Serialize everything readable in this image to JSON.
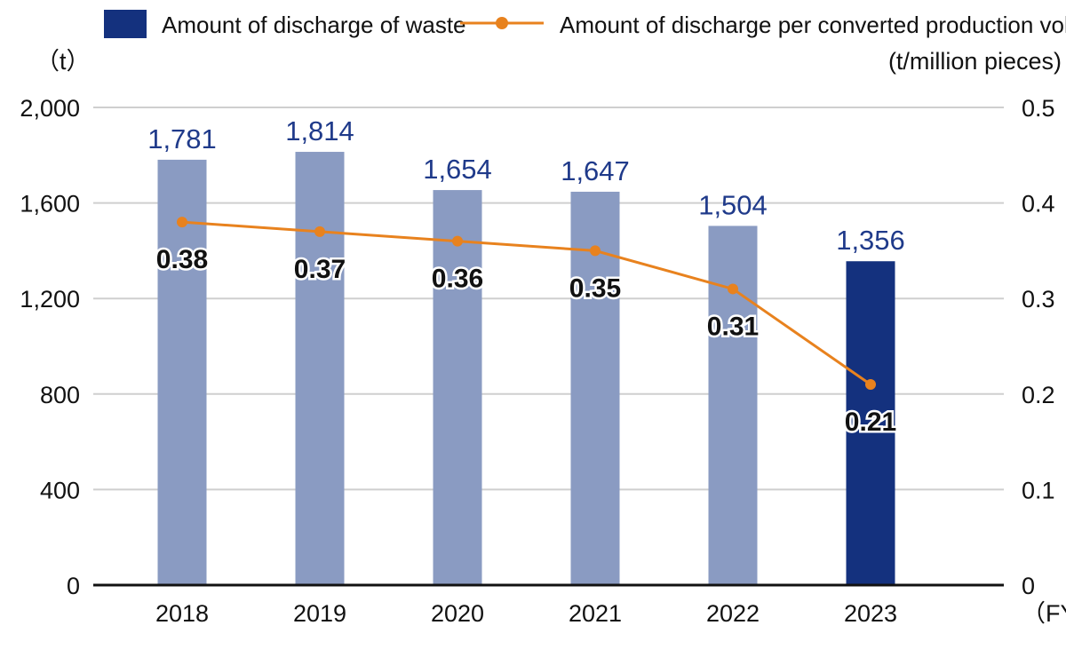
{
  "chart_data": {
    "type": "bar+line",
    "categories": [
      "2018",
      "2019",
      "2020",
      "2021",
      "2022",
      "2023"
    ],
    "series": [
      {
        "name": "Amount of discharge of waste",
        "type": "bar",
        "axis": "left",
        "values": [
          1781,
          1814,
          1654,
          1647,
          1504,
          1356
        ],
        "labels": [
          "1,781",
          "1,814",
          "1,654",
          "1,647",
          "1,504",
          "1,356"
        ],
        "color": "#8a9bc2",
        "highlight_color": "#14317e"
      },
      {
        "name": "Amount of discharge per converted production volume",
        "type": "line",
        "axis": "right",
        "values": [
          0.38,
          0.37,
          0.36,
          0.35,
          0.31,
          0.21
        ],
        "labels": [
          "0.38",
          "0.37",
          "0.36",
          "0.35",
          "0.31",
          "0.21"
        ],
        "color": "#e8821e"
      }
    ],
    "left_axis": {
      "unit": "（t）",
      "ylim": [
        0,
        2000
      ],
      "ticks": [
        "0",
        "400",
        "800",
        "1,200",
        "1,600",
        "2,000"
      ],
      "tick_values": [
        0,
        400,
        800,
        1200,
        1600,
        2000
      ]
    },
    "right_axis": {
      "unit": "(t/million pieces)",
      "ylim": [
        0,
        0.5
      ],
      "ticks": [
        "0",
        "0.1",
        "0.2",
        "0.3",
        "0.4",
        "0.5"
      ],
      "tick_values": [
        0,
        0.1,
        0.2,
        0.3,
        0.4,
        0.5
      ]
    },
    "xlabel": "（FY）",
    "grid": true,
    "legend": "top"
  }
}
